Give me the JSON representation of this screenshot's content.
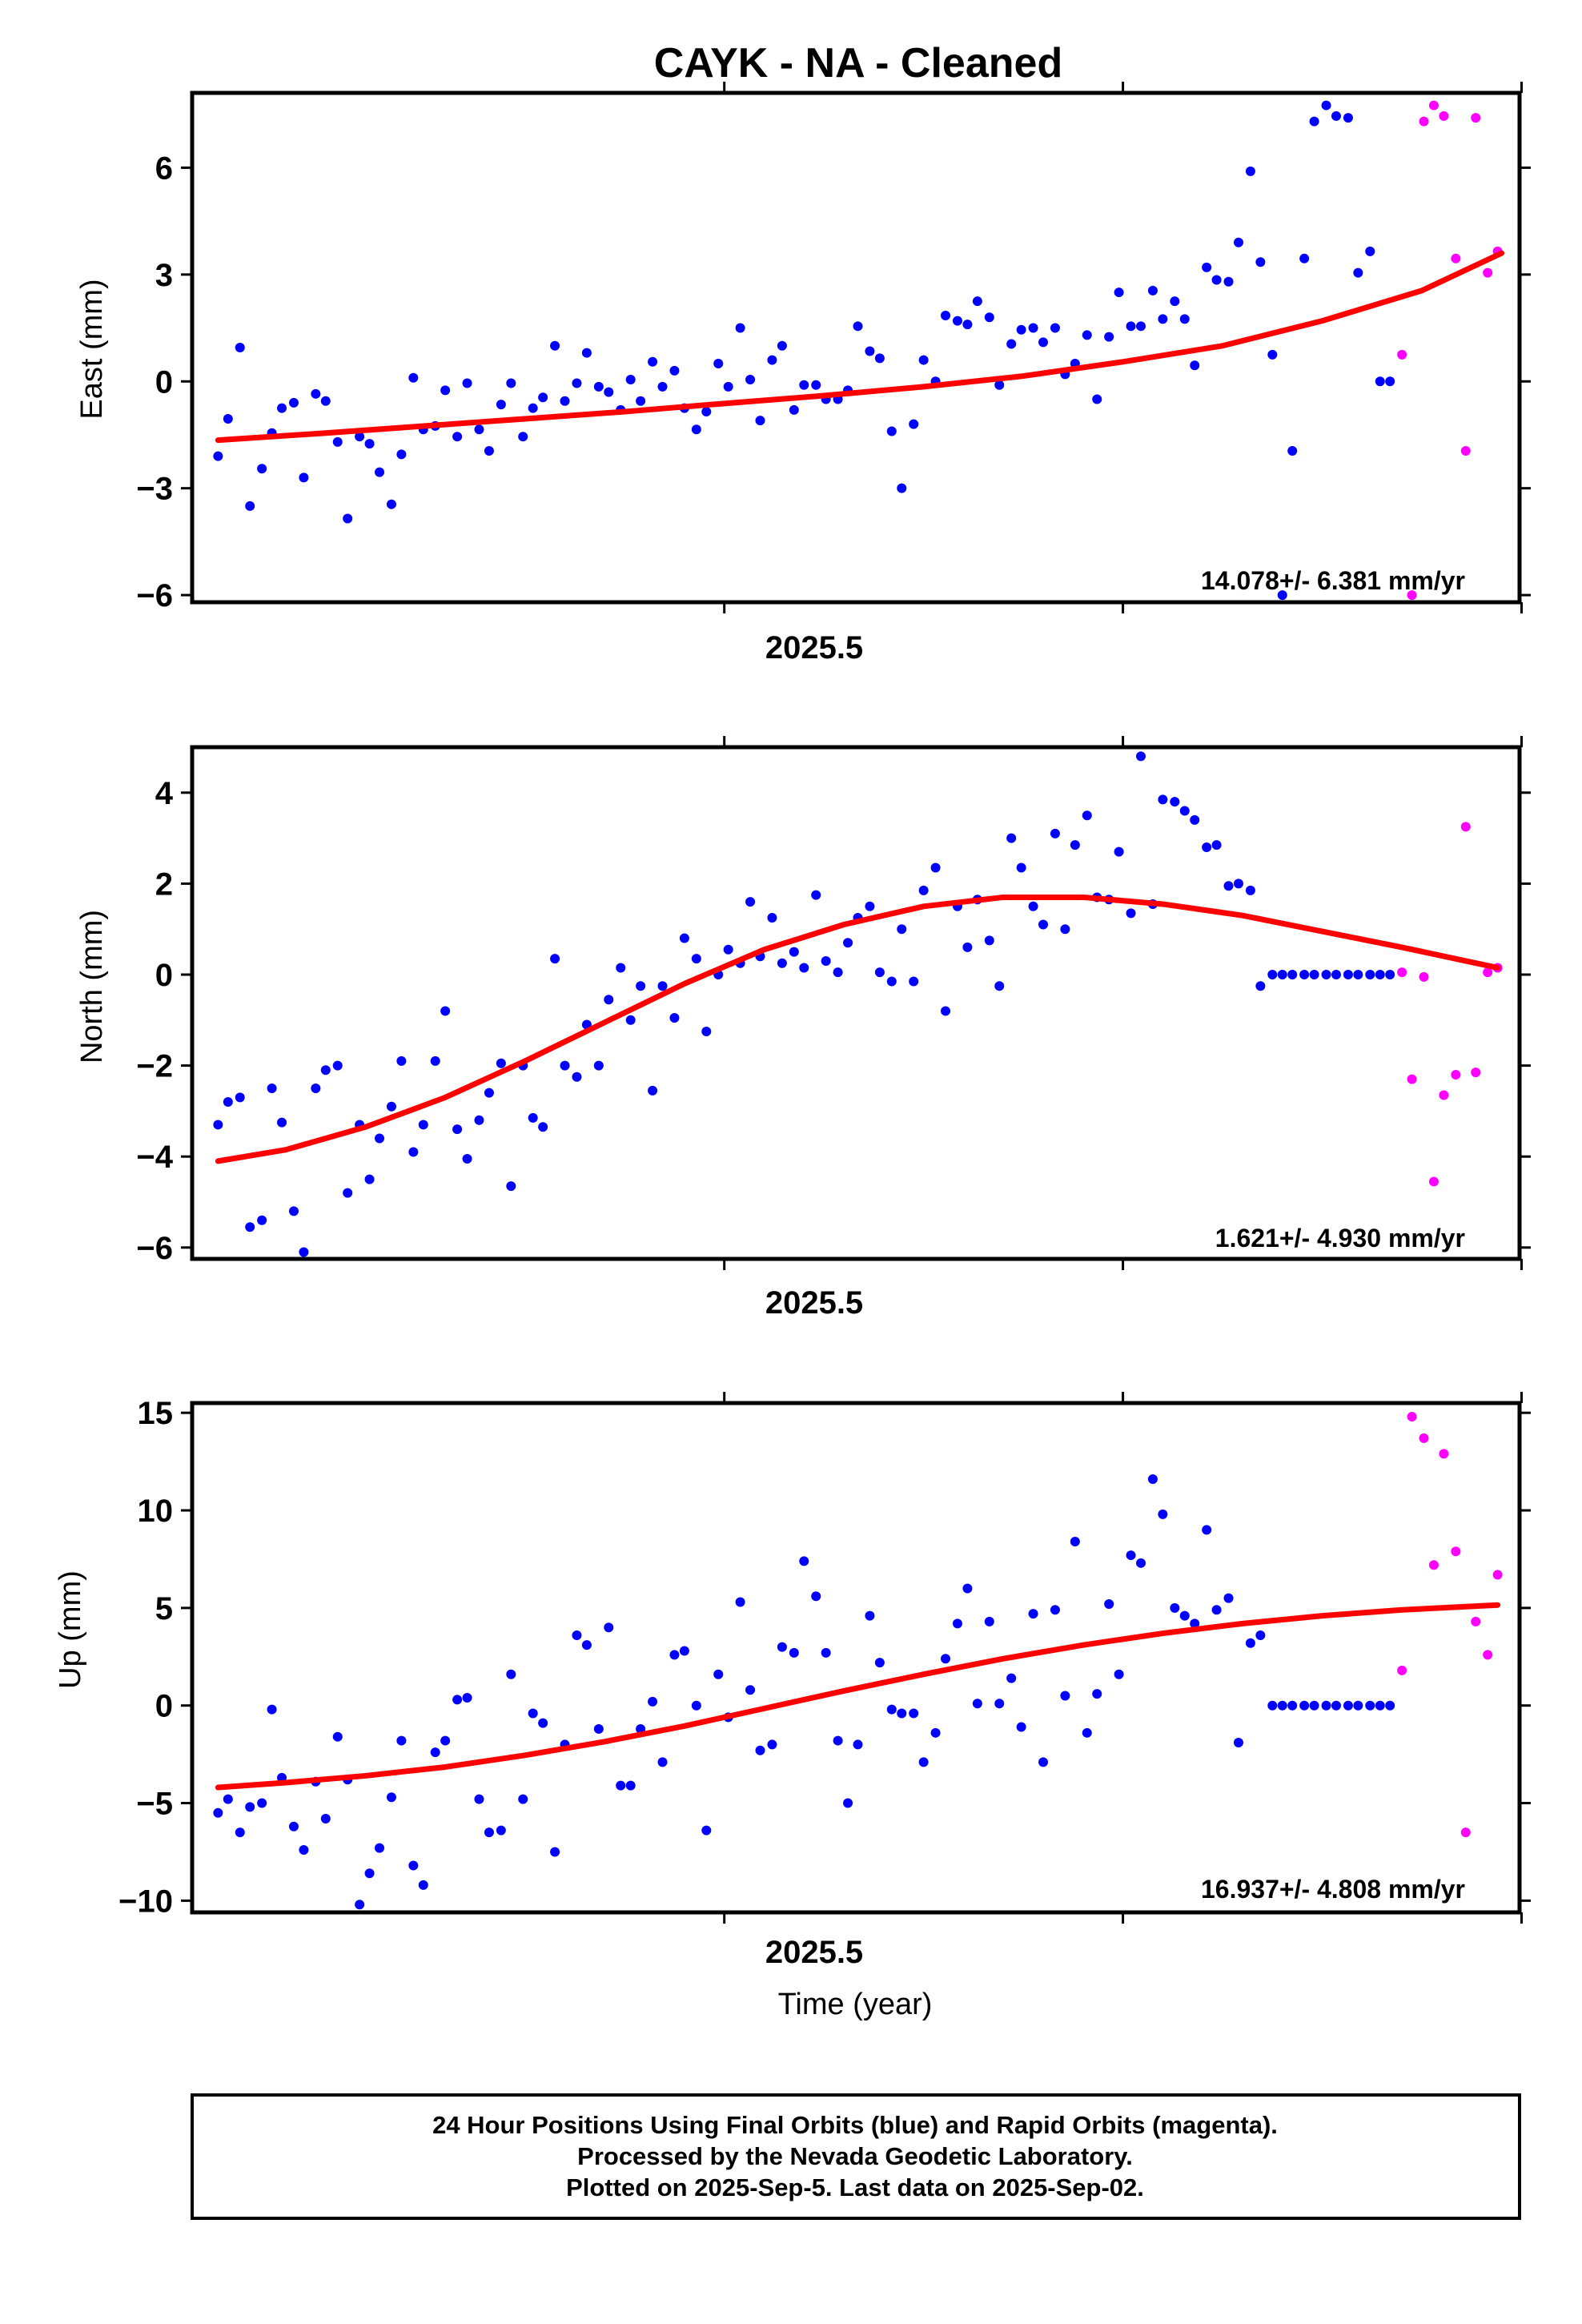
{
  "colors": {
    "final_orbits": "#0000ff",
    "rapid_orbits": "#ff00ff",
    "fit_line": "#ff0000",
    "frame": "#000000",
    "background": "#ffffff"
  },
  "chart_data": [
    {
      "type": "scatter",
      "panel": "east",
      "title": "CAYK  - NA - Cleaned",
      "xlabel": "",
      "ylabel": "East (mm)",
      "xlim": [
        2025.033,
        2025.699
      ],
      "ylim": [
        -6.2,
        8.1
      ],
      "yticks": [
        -6,
        -3,
        0,
        3,
        6
      ],
      "xticks_labeled": [
        2025.5
      ],
      "xticks_minor": [
        2025.3,
        2025.5,
        2025.7
      ],
      "x_tick_label": "2025.5",
      "rate_label": "14.078+/- 6.381 mm/yr",
      "grid": false,
      "series": [
        {
          "name": "Final Orbits",
          "kind": "points",
          "color": "#0000ff",
          "x": [
            2025.046,
            2025.051,
            2025.057,
            2025.062,
            2025.068,
            2025.073,
            2025.078,
            2025.084,
            2025.089,
            2025.095,
            2025.1,
            2025.106,
            2025.111,
            2025.117,
            2025.122,
            2025.127,
            2025.133,
            2025.138,
            2025.144,
            2025.149,
            2025.155,
            2025.16,
            2025.166,
            2025.171,
            2025.177,
            2025.182,
            2025.188,
            2025.193,
            2025.199,
            2025.204,
            2025.209,
            2025.215,
            2025.22,
            2025.226,
            2025.231,
            2025.237,
            2025.242,
            2025.248,
            2025.253,
            2025.258,
            2025.264,
            2025.269,
            2025.275,
            2025.28,
            2025.286,
            2025.291,
            2025.297,
            2025.302,
            2025.308,
            2025.313,
            2025.318,
            2025.324,
            2025.329,
            2025.335,
            2025.34,
            2025.346,
            2025.351,
            2025.357,
            2025.362,
            2025.367,
            2025.373,
            2025.378,
            2025.384,
            2025.389,
            2025.395,
            2025.4,
            2025.406,
            2025.411,
            2025.417,
            2025.422,
            2025.427,
            2025.433,
            2025.438,
            2025.444,
            2025.449,
            2025.455,
            2025.46,
            2025.466,
            2025.471,
            2025.476,
            2025.482,
            2025.487,
            2025.493,
            2025.498,
            2025.504,
            2025.509,
            2025.515,
            2025.52,
            2025.526,
            2025.531,
            2025.536,
            2025.542,
            2025.547,
            2025.553,
            2025.558,
            2025.564,
            2025.569,
            2025.575,
            2025.58,
            2025.585,
            2025.591,
            2025.596,
            2025.602,
            2025.607,
            2025.613,
            2025.618,
            2025.624,
            2025.629,
            2025.634,
            2025.64
          ],
          "values": [
            -2.1,
            -1.05,
            0.95,
            -3.5,
            -2.45,
            -1.45,
            -0.75,
            -0.6,
            -2.7,
            -0.35,
            -0.55,
            -1.7,
            -3.85,
            -1.55,
            -1.75,
            -2.55,
            -3.45,
            -2.05,
            0.1,
            -1.35,
            -1.25,
            -0.25,
            -1.55,
            -0.05,
            -1.35,
            -1.95,
            -0.65,
            -0.05,
            -1.55,
            -0.75,
            -0.45,
            1.0,
            -0.55,
            -0.05,
            0.8,
            -0.15,
            -0.3,
            -0.8,
            0.05,
            -0.55,
            0.55,
            -0.15,
            0.3,
            -0.75,
            -1.35,
            -0.85,
            0.5,
            -0.15,
            1.5,
            0.05,
            -1.1,
            0.6,
            1.0,
            -0.8,
            -0.1,
            -0.1,
            -0.5,
            -0.5,
            -0.25,
            1.55,
            0.85,
            0.65,
            -1.4,
            -3.0,
            -1.2,
            0.6,
            0.0,
            1.85,
            1.7,
            1.6,
            2.25,
            1.8,
            -0.1,
            1.05,
            1.45,
            1.5,
            1.1,
            1.5,
            0.2,
            0.5,
            1.3,
            -0.5,
            1.25,
            2.5,
            1.55,
            1.55,
            2.55,
            1.75,
            2.25,
            1.75,
            0.45,
            3.2,
            2.85,
            2.8,
            3.9,
            5.9,
            3.35,
            0.75,
            -6.0,
            -1.95,
            3.45,
            7.3,
            7.75,
            7.45,
            7.4,
            3.05,
            3.65,
            0,
            0,
            0
          ]
        },
        {
          "name": "Rapid Orbits",
          "kind": "points",
          "color": "#ff00ff",
          "x": [
            2025.64,
            2025.645,
            2025.651,
            2025.656,
            2025.661,
            2025.667,
            2025.672,
            2025.677,
            2025.683,
            2025.688
          ],
          "values": [
            0.75,
            -6.0,
            7.3,
            7.75,
            7.45,
            3.45,
            -1.95,
            7.4,
            3.05,
            3.65
          ]
        },
        {
          "name": "Fit",
          "kind": "line",
          "color": "#ff0000",
          "x": [
            2025.046,
            2025.1,
            2025.15,
            2025.2,
            2025.25,
            2025.3,
            2025.35,
            2025.4,
            2025.45,
            2025.5,
            2025.55,
            2025.6,
            2025.65,
            2025.69
          ],
          "values": [
            -1.65,
            -1.45,
            -1.25,
            -1.05,
            -0.85,
            -0.62,
            -0.4,
            -0.15,
            0.15,
            0.55,
            1.0,
            1.7,
            2.55,
            3.6
          ]
        }
      ]
    },
    {
      "type": "scatter",
      "panel": "north",
      "title": "",
      "xlabel": "",
      "ylabel": "North (mm)",
      "xlim": [
        2025.033,
        2025.699
      ],
      "ylim": [
        -6.25,
        5.0
      ],
      "yticks": [
        -6,
        -4,
        -2,
        0,
        2,
        4
      ],
      "xticks_labeled": [
        2025.5
      ],
      "xticks_minor": [
        2025.3,
        2025.5,
        2025.7
      ],
      "x_tick_label": "2025.5",
      "rate_label": "1.621+/- 4.930 mm/yr",
      "grid": false,
      "series": [
        {
          "name": "Final Orbits",
          "kind": "points",
          "color": "#0000ff",
          "x": [
            2025.046,
            2025.051,
            2025.057,
            2025.062,
            2025.068,
            2025.073,
            2025.078,
            2025.084,
            2025.089,
            2025.095,
            2025.1,
            2025.106,
            2025.111,
            2025.117,
            2025.122,
            2025.127,
            2025.133,
            2025.138,
            2025.144,
            2025.149,
            2025.155,
            2025.16,
            2025.166,
            2025.171,
            2025.177,
            2025.182,
            2025.188,
            2025.193,
            2025.199,
            2025.204,
            2025.209,
            2025.215,
            2025.22,
            2025.226,
            2025.231,
            2025.237,
            2025.242,
            2025.248,
            2025.253,
            2025.258,
            2025.264,
            2025.269,
            2025.275,
            2025.28,
            2025.286,
            2025.291,
            2025.297,
            2025.302,
            2025.308,
            2025.313,
            2025.318,
            2025.324,
            2025.329,
            2025.335,
            2025.34,
            2025.346,
            2025.351,
            2025.357,
            2025.362,
            2025.367,
            2025.373,
            2025.378,
            2025.384,
            2025.389,
            2025.395,
            2025.4,
            2025.406,
            2025.411,
            2025.417,
            2025.422,
            2025.427,
            2025.433,
            2025.438,
            2025.444,
            2025.449,
            2025.455,
            2025.46,
            2025.466,
            2025.471,
            2025.476,
            2025.482,
            2025.487,
            2025.493,
            2025.498,
            2025.504,
            2025.509,
            2025.515,
            2025.52,
            2025.526,
            2025.531,
            2025.536,
            2025.542,
            2025.547,
            2025.553,
            2025.558,
            2025.564,
            2025.569,
            2025.575,
            2025.58,
            2025.585,
            2025.591,
            2025.596,
            2025.602,
            2025.607,
            2025.613,
            2025.618,
            2025.624,
            2025.629,
            2025.634
          ],
          "values": [
            -3.3,
            -2.8,
            -2.7,
            -5.55,
            -5.4,
            -2.5,
            -3.25,
            -5.2,
            -6.1,
            -2.5,
            -2.1,
            -2.0,
            -4.8,
            -3.3,
            -4.5,
            -3.6,
            -2.9,
            -1.9,
            -3.9,
            -3.3,
            -1.9,
            -0.8,
            -3.4,
            -4.05,
            -3.2,
            -2.6,
            -1.95,
            -4.65,
            -2.0,
            -3.15,
            -3.35,
            0.35,
            -2.0,
            -2.25,
            -1.1,
            -2.0,
            -0.55,
            0.15,
            -1.0,
            -0.25,
            -2.55,
            -0.25,
            -0.95,
            0.8,
            0.35,
            -1.25,
            0.0,
            0.55,
            0.25,
            1.6,
            0.4,
            1.25,
            0.25,
            0.5,
            0.15,
            1.75,
            0.3,
            0.05,
            0.7,
            1.25,
            1.5,
            0.05,
            -0.15,
            1.0,
            -0.15,
            1.85,
            2.35,
            -0.8,
            1.5,
            0.6,
            1.65,
            0.75,
            -0.25,
            3.0,
            2.35,
            1.5,
            1.1,
            3.1,
            1.0,
            2.85,
            3.5,
            1.7,
            1.65,
            2.7,
            1.35,
            4.8,
            1.55,
            3.85,
            3.8,
            3.6,
            3.4,
            2.8,
            2.85,
            1.95,
            2.0,
            1.85,
            -0.25,
            0,
            0,
            0,
            0,
            0,
            0,
            0,
            0,
            0,
            0,
            0,
            0
          ]
        },
        {
          "name": "Rapid Orbits",
          "kind": "points",
          "color": "#ff00ff",
          "x": [
            2025.64,
            2025.645,
            2025.651,
            2025.656,
            2025.661,
            2025.667,
            2025.672,
            2025.677,
            2025.683,
            2025.688
          ],
          "values": [
            0.05,
            -2.3,
            -0.05,
            -4.55,
            -2.65,
            -2.2,
            3.25,
            -2.15,
            0.05,
            0.15
          ]
        },
        {
          "name": "Fit",
          "kind": "line",
          "color": "#ff0000",
          "x": [
            2025.046,
            2025.08,
            2025.12,
            2025.16,
            2025.2,
            2025.24,
            2025.28,
            2025.32,
            2025.36,
            2025.4,
            2025.44,
            2025.48,
            2025.52,
            2025.56,
            2025.6,
            2025.64,
            2025.688
          ],
          "values": [
            -4.1,
            -3.85,
            -3.35,
            -2.7,
            -1.9,
            -1.05,
            -0.2,
            0.55,
            1.1,
            1.5,
            1.7,
            1.7,
            1.55,
            1.3,
            0.95,
            0.6,
            0.15
          ]
        }
      ]
    },
    {
      "type": "scatter",
      "panel": "up",
      "title": "",
      "xlabel": "Time (year)",
      "ylabel": "Up (mm)",
      "xlim": [
        2025.033,
        2025.699
      ],
      "ylim": [
        -10.6,
        15.5
      ],
      "yticks": [
        -10,
        -5,
        0,
        5,
        10,
        15
      ],
      "xticks_labeled": [
        2025.5
      ],
      "xticks_minor": [
        2025.3,
        2025.5,
        2025.7
      ],
      "x_tick_label": "2025.5",
      "rate_label": "16.937+/- 4.808 mm/yr",
      "grid": false,
      "series": [
        {
          "name": "Final Orbits",
          "kind": "points",
          "color": "#0000ff",
          "x": [
            2025.046,
            2025.051,
            2025.057,
            2025.062,
            2025.068,
            2025.073,
            2025.078,
            2025.084,
            2025.089,
            2025.095,
            2025.1,
            2025.106,
            2025.111,
            2025.117,
            2025.122,
            2025.127,
            2025.133,
            2025.138,
            2025.144,
            2025.149,
            2025.155,
            2025.16,
            2025.166,
            2025.171,
            2025.177,
            2025.182,
            2025.188,
            2025.193,
            2025.199,
            2025.204,
            2025.209,
            2025.215,
            2025.22,
            2025.226,
            2025.231,
            2025.237,
            2025.242,
            2025.248,
            2025.253,
            2025.258,
            2025.264,
            2025.269,
            2025.275,
            2025.28,
            2025.286,
            2025.291,
            2025.297,
            2025.302,
            2025.308,
            2025.313,
            2025.318,
            2025.324,
            2025.329,
            2025.335,
            2025.34,
            2025.346,
            2025.351,
            2025.357,
            2025.362,
            2025.367,
            2025.373,
            2025.378,
            2025.384,
            2025.389,
            2025.395,
            2025.4,
            2025.406,
            2025.411,
            2025.417,
            2025.422,
            2025.427,
            2025.433,
            2025.438,
            2025.444,
            2025.449,
            2025.455,
            2025.46,
            2025.466,
            2025.471,
            2025.476,
            2025.482,
            2025.487,
            2025.493,
            2025.498,
            2025.504,
            2025.509,
            2025.515,
            2025.52,
            2025.526,
            2025.531,
            2025.536,
            2025.542,
            2025.547,
            2025.553,
            2025.558,
            2025.564,
            2025.569,
            2025.575,
            2025.58,
            2025.585,
            2025.591,
            2025.596,
            2025.602,
            2025.607,
            2025.613,
            2025.618,
            2025.624,
            2025.629,
            2025.634
          ],
          "values": [
            -5.5,
            -4.8,
            -6.5,
            -5.2,
            -5.0,
            -0.2,
            -3.7,
            -6.2,
            -7.4,
            -3.9,
            -5.8,
            -1.6,
            -3.8,
            -10.2,
            -8.6,
            -7.3,
            -4.7,
            -1.8,
            -8.2,
            -9.2,
            -2.4,
            -1.8,
            0.3,
            0.4,
            -4.8,
            -6.5,
            -6.4,
            1.6,
            -4.8,
            -0.4,
            -0.9,
            -7.5,
            -2.0,
            3.6,
            3.1,
            -1.2,
            4.0,
            -4.1,
            -4.1,
            -1.2,
            0.2,
            -2.9,
            2.6,
            2.8,
            0.0,
            -6.4,
            1.6,
            -0.6,
            5.3,
            0.8,
            -2.3,
            -2.0,
            3.0,
            2.7,
            7.4,
            5.6,
            2.7,
            -1.8,
            -5.0,
            -2.0,
            4.6,
            2.2,
            -0.2,
            -0.4,
            -0.4,
            -2.9,
            -1.4,
            2.4,
            4.2,
            6.0,
            0.1,
            4.3,
            0.1,
            1.4,
            -1.1,
            4.7,
            -2.9,
            4.9,
            0.5,
            8.4,
            -1.4,
            0.6,
            5.2,
            1.6,
            7.7,
            7.3,
            11.6,
            9.8,
            5.0,
            4.6,
            4.2,
            9.0,
            4.9,
            5.5,
            -1.9,
            3.2,
            3.6,
            0,
            0,
            0,
            0,
            0,
            0,
            0,
            0,
            0,
            0,
            0,
            0
          ]
        },
        {
          "name": "Rapid Orbits",
          "kind": "points",
          "color": "#ff00ff",
          "x": [
            2025.64,
            2025.645,
            2025.651,
            2025.656,
            2025.661,
            2025.667,
            2025.672,
            2025.677,
            2025.683,
            2025.688
          ],
          "values": [
            1.8,
            14.8,
            13.7,
            7.2,
            12.9,
            7.9,
            -6.5,
            4.3,
            2.6,
            6.7
          ]
        },
        {
          "name": "Fit",
          "kind": "line",
          "color": "#ff0000",
          "x": [
            2025.046,
            2025.08,
            2025.12,
            2025.16,
            2025.2,
            2025.24,
            2025.28,
            2025.32,
            2025.36,
            2025.4,
            2025.44,
            2025.48,
            2025.52,
            2025.56,
            2025.6,
            2025.64,
            2025.688
          ],
          "values": [
            -4.2,
            -3.95,
            -3.6,
            -3.15,
            -2.55,
            -1.85,
            -1.05,
            -0.15,
            0.75,
            1.6,
            2.4,
            3.1,
            3.7,
            4.2,
            4.6,
            4.9,
            5.15
          ]
        }
      ]
    }
  ],
  "footer": {
    "line1": "24 Hour Positions Using Final Orbits (blue) and Rapid Orbits (magenta).",
    "line2": "Processed by the Nevada Geodetic Laboratory.",
    "line3": "Plotted on 2025-Sep-5. Last data on 2025-Sep-02."
  }
}
